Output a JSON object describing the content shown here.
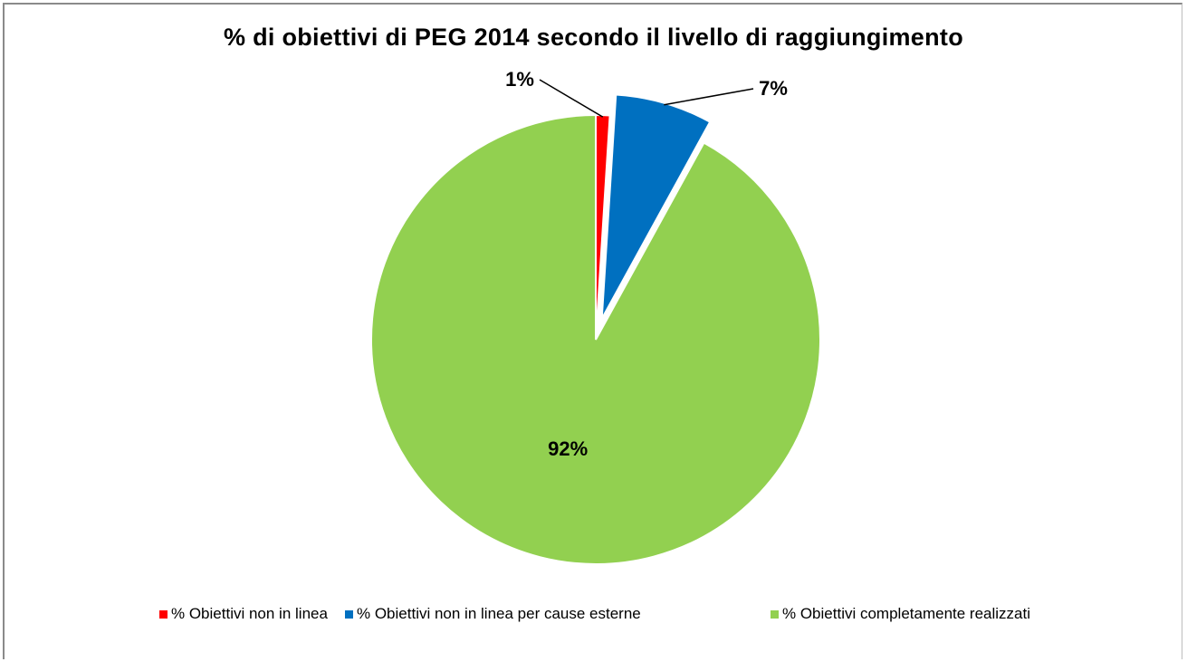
{
  "chart_data": {
    "type": "pie",
    "title": "% di obiettivi di PEG 2014 secondo il livello di raggiungimento",
    "start_angle_deg": 0,
    "direction": "clockwise",
    "slices": [
      {
        "name": "% Obiettivi non in linea",
        "value": 1,
        "label": "1%",
        "color": "#ff0000",
        "exploded": false
      },
      {
        "name": "% Obiettivi non in linea per cause esterne",
        "value": 7,
        "label": "7%",
        "color": "#0070c0",
        "exploded": true
      },
      {
        "name": "% Obiettivi completamente realizzati",
        "value": 92,
        "label": "92%",
        "color": "#92d050",
        "exploded": false
      }
    ],
    "legend_position": "bottom",
    "data_labels": true
  }
}
